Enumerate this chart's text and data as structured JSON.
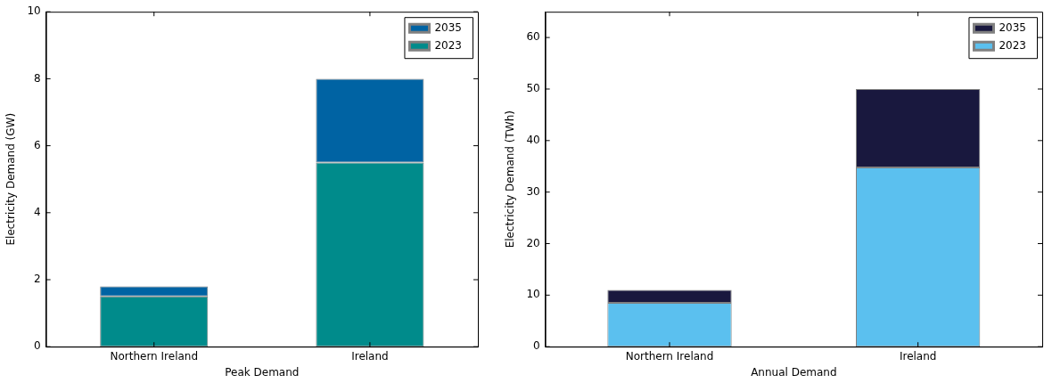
{
  "chart_data": [
    {
      "type": "bar",
      "stacked": true,
      "xlabel": "Peak Demand",
      "ylabel": "Electricity Demand (GW)",
      "categories": [
        "Northern Ireland",
        "Ireland"
      ],
      "ylim": [
        0,
        10
      ],
      "yticks": [
        0,
        2,
        4,
        6,
        8,
        10
      ],
      "grid": false,
      "legend": "top right",
      "series": [
        {
          "name": "2023",
          "color": "#008b8b",
          "values": [
            1.5,
            5.5
          ]
        },
        {
          "name": "2035",
          "color": "#0063a3",
          "values": [
            0.3,
            2.5
          ]
        }
      ]
    },
    {
      "type": "bar",
      "stacked": true,
      "xlabel": "Annual Demand",
      "ylabel": "Electricity Demand (TWh)",
      "categories": [
        "Northern Ireland",
        "Ireland"
      ],
      "ylim": [
        0,
        65
      ],
      "yticks": [
        0,
        10,
        20,
        30,
        40,
        50,
        60
      ],
      "grid": false,
      "legend": "top right",
      "series": [
        {
          "name": "2023",
          "color": "#5bc0ef",
          "values": [
            8.5,
            34.8
          ]
        },
        {
          "name": "2035",
          "color": "#19183e",
          "values": [
            2.5,
            15.2
          ]
        }
      ]
    }
  ]
}
